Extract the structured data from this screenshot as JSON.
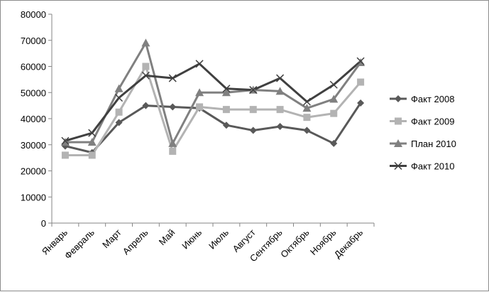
{
  "chart_data": {
    "type": "line",
    "title": "",
    "xlabel": "",
    "ylabel": "",
    "categories": [
      "Январь",
      "Февраль",
      "Март",
      "Апрель",
      "Май",
      "Июнь",
      "Июль",
      "Август",
      "Сентябрь",
      "Октябрь",
      "Ноябрь",
      "Декабрь"
    ],
    "ylim": [
      0,
      80000
    ],
    "yticks": [
      0,
      10000,
      20000,
      30000,
      40000,
      50000,
      60000,
      70000,
      80000
    ],
    "ytick_labels": [
      "0",
      "10000",
      "20000",
      "30000",
      "40000",
      "50000",
      "60000",
      "70000",
      "80000"
    ],
    "grid": false,
    "legend_position": "right",
    "series": [
      {
        "name": "Факт 2008",
        "marker": "diamond",
        "color": "#595959",
        "values": [
          29500,
          27000,
          38500,
          45000,
          44500,
          44000,
          37500,
          35500,
          37000,
          35500,
          30500,
          46000
        ]
      },
      {
        "name": "Факт 2009",
        "marker": "square",
        "color": "#b3b3b3",
        "values": [
          26000,
          26000,
          42500,
          60000,
          27500,
          44500,
          43500,
          43500,
          43500,
          40500,
          42000,
          54000
        ]
      },
      {
        "name": "План 2010",
        "marker": "triangle",
        "color": "#808080",
        "values": [
          31000,
          31000,
          51500,
          69000,
          30500,
          50000,
          50000,
          51000,
          50500,
          44000,
          47500,
          61500
        ]
      },
      {
        "name": "Факт 2010",
        "marker": "x",
        "color": "#404040",
        "values": [
          31500,
          34500,
          48000,
          56500,
          55500,
          61000,
          51500,
          51000,
          55500,
          46500,
          53000,
          62000
        ]
      }
    ]
  }
}
